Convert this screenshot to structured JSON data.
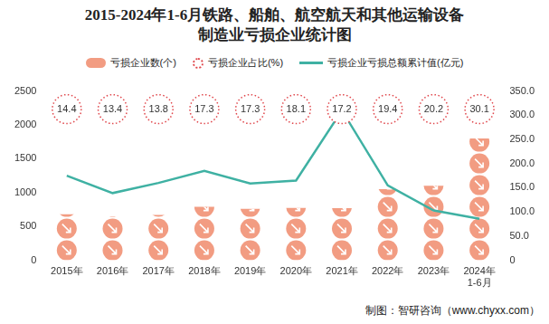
{
  "chart_data": {
    "type": "bar",
    "title": "2015-2024年1-6月铁路、船舶、航空航天和其他运输设备\n制造业亏损企业统计图",
    "categories": [
      "2015年",
      "2016年",
      "2017年",
      "2018年",
      "2019年",
      "2020年",
      "2021年",
      "2022年",
      "2023年",
      "2024年\n1-6月"
    ],
    "series": [
      {
        "name": "亏损企业数(个)",
        "type": "bar",
        "color": "#f29c82",
        "marker": "circle",
        "values": [
          680,
          650,
          670,
          790,
          760,
          775,
          770,
          1050,
          1100,
          1800
        ]
      },
      {
        "name": "亏损企业占比(%)",
        "type": "label",
        "color": "#e0474c",
        "marker": "circle",
        "line_style": "dotted",
        "data_labels": true,
        "values": [
          14.4,
          13.4,
          13.8,
          17.3,
          17.3,
          18.1,
          17.2,
          19.4,
          20.2,
          30.1
        ]
      },
      {
        "name": "亏损企业亏损总额累计值(亿元)",
        "type": "line",
        "color": "#3fb1a3",
        "line_style": "solid",
        "axis": "y2",
        "values": [
          175,
          139,
          160,
          185,
          159,
          165,
          310,
          155,
          103,
          86
        ]
      }
    ],
    "ylim": [
      0,
      2500
    ],
    "yticks": [
      0,
      500,
      1000,
      1500,
      2000,
      2500
    ],
    "y2lim": [
      0,
      350
    ],
    "y2ticks": [
      0,
      {
        "value": 50,
        "label": "50.0"
      },
      {
        "value": 100,
        "label": "100.0"
      },
      {
        "value": 150,
        "label": "150.0"
      },
      {
        "value": 200,
        "label": "200.0"
      },
      {
        "value": 250,
        "label": "250.0"
      },
      {
        "value": 300,
        "label": "300.0"
      },
      {
        "value": 350,
        "label": "350.0"
      }
    ],
    "grid": false,
    "legend": "top",
    "annotations": [
      "制图：智研咨询（www.chyxx.com）"
    ]
  }
}
